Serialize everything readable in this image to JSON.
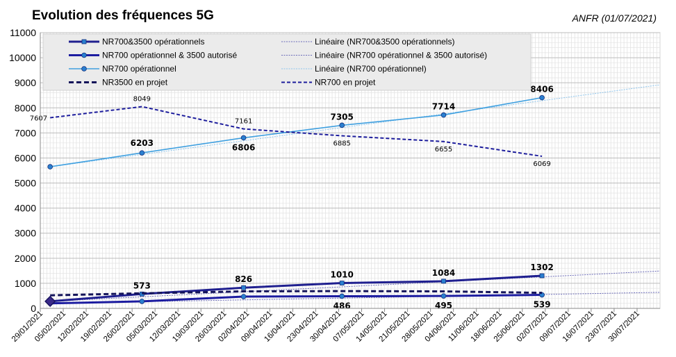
{
  "chart_data": {
    "type": "line",
    "title": "Evolution des fréquences 5G",
    "source_note": "ANFR (01/07/2021)",
    "xlabel": "",
    "ylabel": "",
    "ylim": [
      0,
      11000
    ],
    "yticks": [
      0,
      1000,
      2000,
      3000,
      4000,
      5000,
      6000,
      7000,
      8000,
      9000,
      10000,
      11000
    ],
    "x_axis": {
      "type": "date",
      "range": [
        "2021-01-29",
        "2021-08-06"
      ],
      "tick_labels": [
        "29/01/2021",
        "05/02/2021",
        "12/02/2021",
        "19/02/2021",
        "26/02/2021",
        "05/03/2021",
        "12/03/2021",
        "19/03/2021",
        "26/03/2021",
        "02/04/2021",
        "09/04/2021",
        "16/04/2021",
        "23/04/2021",
        "30/04/2021",
        "07/05/2021",
        "14/05/2021",
        "21/05/2021",
        "28/05/2021",
        "04/06/2021",
        "11/06/2021",
        "18/06/2021",
        "25/06/2021",
        "02/07/2021",
        "09/07/2021",
        "16/07/2021",
        "23/07/2021",
        "30/07/2021"
      ],
      "tick_dates": [
        "2021-01-29",
        "2021-02-05",
        "2021-02-12",
        "2021-02-19",
        "2021-02-26",
        "2021-03-05",
        "2021-03-12",
        "2021-03-19",
        "2021-03-26",
        "2021-04-02",
        "2021-04-09",
        "2021-04-16",
        "2021-04-23",
        "2021-04-30",
        "2021-05-07",
        "2021-05-14",
        "2021-05-21",
        "2021-05-28",
        "2021-06-04",
        "2021-06-11",
        "2021-06-18",
        "2021-06-25",
        "2021-07-02",
        "2021-07-09",
        "2021-07-16",
        "2021-07-23",
        "2021-07-30"
      ]
    },
    "grid": true,
    "legend_position": "top",
    "series": [
      {
        "name": "NR700&3500 opérationnels",
        "color": "#1f1f8f",
        "style": "solid-thick",
        "marker": "square",
        "x": [
          "2021-02-01",
          "2021-03-01",
          "2021-04-01",
          "2021-05-01",
          "2021-06-01",
          "2021-07-01"
        ],
        "y": [
          280,
          573,
          826,
          1010,
          1084,
          1302
        ],
        "labels": [
          null,
          "573",
          "826",
          "1010",
          "1084",
          "1302"
        ]
      },
      {
        "name": "NR700 opérationnel & 3500 autorisé",
        "color": "#1c1ca0",
        "style": "solid-thick",
        "marker": "circle",
        "x": [
          "2021-02-01",
          "2021-03-01",
          "2021-04-01",
          "2021-05-01",
          "2021-06-01",
          "2021-07-01"
        ],
        "y": [
          200,
          280,
          470,
          486,
          495,
          539
        ],
        "labels": [
          null,
          null,
          null,
          "486",
          "495",
          "539"
        ]
      },
      {
        "name": "NR700 opérationnel",
        "color": "#3fa0e0",
        "style": "solid",
        "marker": "circle",
        "x": [
          "2021-02-01",
          "2021-03-01",
          "2021-04-01",
          "2021-05-01",
          "2021-06-01",
          "2021-07-01"
        ],
        "y": [
          5650,
          6203,
          6806,
          7305,
          7714,
          8406
        ],
        "labels": [
          null,
          "6203",
          "6806",
          "7305",
          "7714",
          "8406"
        ]
      },
      {
        "name": "NR3500 en projet",
        "color": "#14145a",
        "style": "dashed-thick",
        "marker": "none",
        "x": [
          "2021-02-01",
          "2021-03-01",
          "2021-04-01",
          "2021-05-01",
          "2021-06-01",
          "2021-07-01"
        ],
        "y": [
          520,
          600,
          680,
          690,
          680,
          620
        ],
        "labels": [
          null,
          null,
          null,
          null,
          null,
          null
        ]
      },
      {
        "name": "NR700 en projet",
        "color": "#1c1c9c",
        "style": "dashed",
        "marker": "none",
        "x": [
          "2021-02-01",
          "2021-03-01",
          "2021-04-01",
          "2021-05-01",
          "2021-06-01",
          "2021-07-01"
        ],
        "y": [
          7607,
          8049,
          7161,
          6885,
          6655,
          6069
        ],
        "labels": [
          "7607",
          "8049",
          "7161",
          "6885",
          "6655",
          "6069"
        ]
      },
      {
        "name": "Linéaire (NR700&3500 opérationnels)",
        "color": "#6a6ab8",
        "style": "trend",
        "x": [
          "2021-02-01",
          "2021-08-06"
        ],
        "y": [
          280,
          1490
        ]
      },
      {
        "name": "Linéaire (NR700 opérationnel & 3500 autorisé)",
        "color": "#6a6ab8",
        "style": "trend",
        "x": [
          "2021-02-01",
          "2021-08-06"
        ],
        "y": [
          200,
          640
        ]
      },
      {
        "name": "Linéaire (NR700 opérationnel)",
        "color": "#8cc4ec",
        "style": "trend",
        "x": [
          "2021-02-01",
          "2021-08-06"
        ],
        "y": [
          5650,
          8920
        ]
      }
    ]
  }
}
